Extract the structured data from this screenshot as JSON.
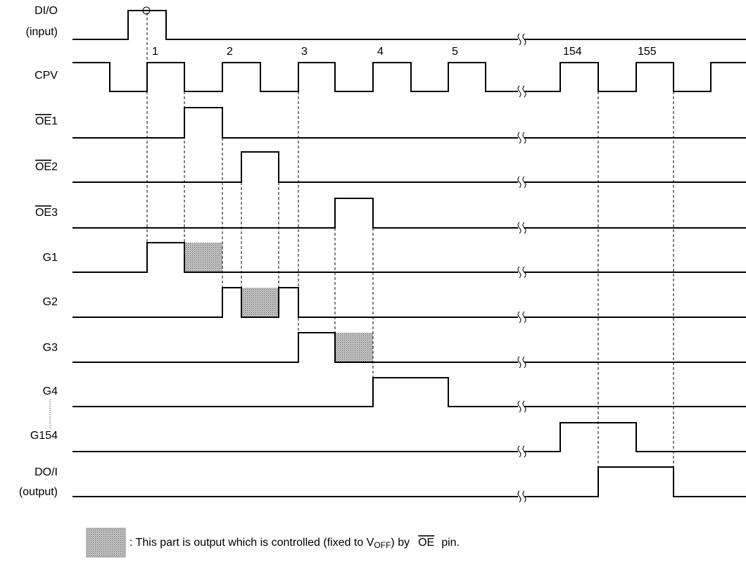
{
  "signals": [
    {
      "name": "DI/O",
      "sub": "(input)"
    },
    {
      "name": "CPV"
    },
    {
      "bar": "OE",
      "name": "1"
    },
    {
      "bar": "OE",
      "name": "2"
    },
    {
      "bar": "OE",
      "name": "3"
    },
    {
      "name": "G1"
    },
    {
      "name": "G2"
    },
    {
      "name": "G3"
    },
    {
      "name": "G4"
    },
    {
      "name": "G154"
    },
    {
      "name": "DO/I",
      "sub": "(output)"
    }
  ],
  "clock_numbers": [
    "1",
    "2",
    "3",
    "4",
    "5",
    "154",
    "155"
  ],
  "legend": {
    "text": ": This part is output which is controlled (fixed to V",
    "subscript": "OFF",
    "text2": ") by",
    "bar": "OE",
    "text3": "pin."
  }
}
